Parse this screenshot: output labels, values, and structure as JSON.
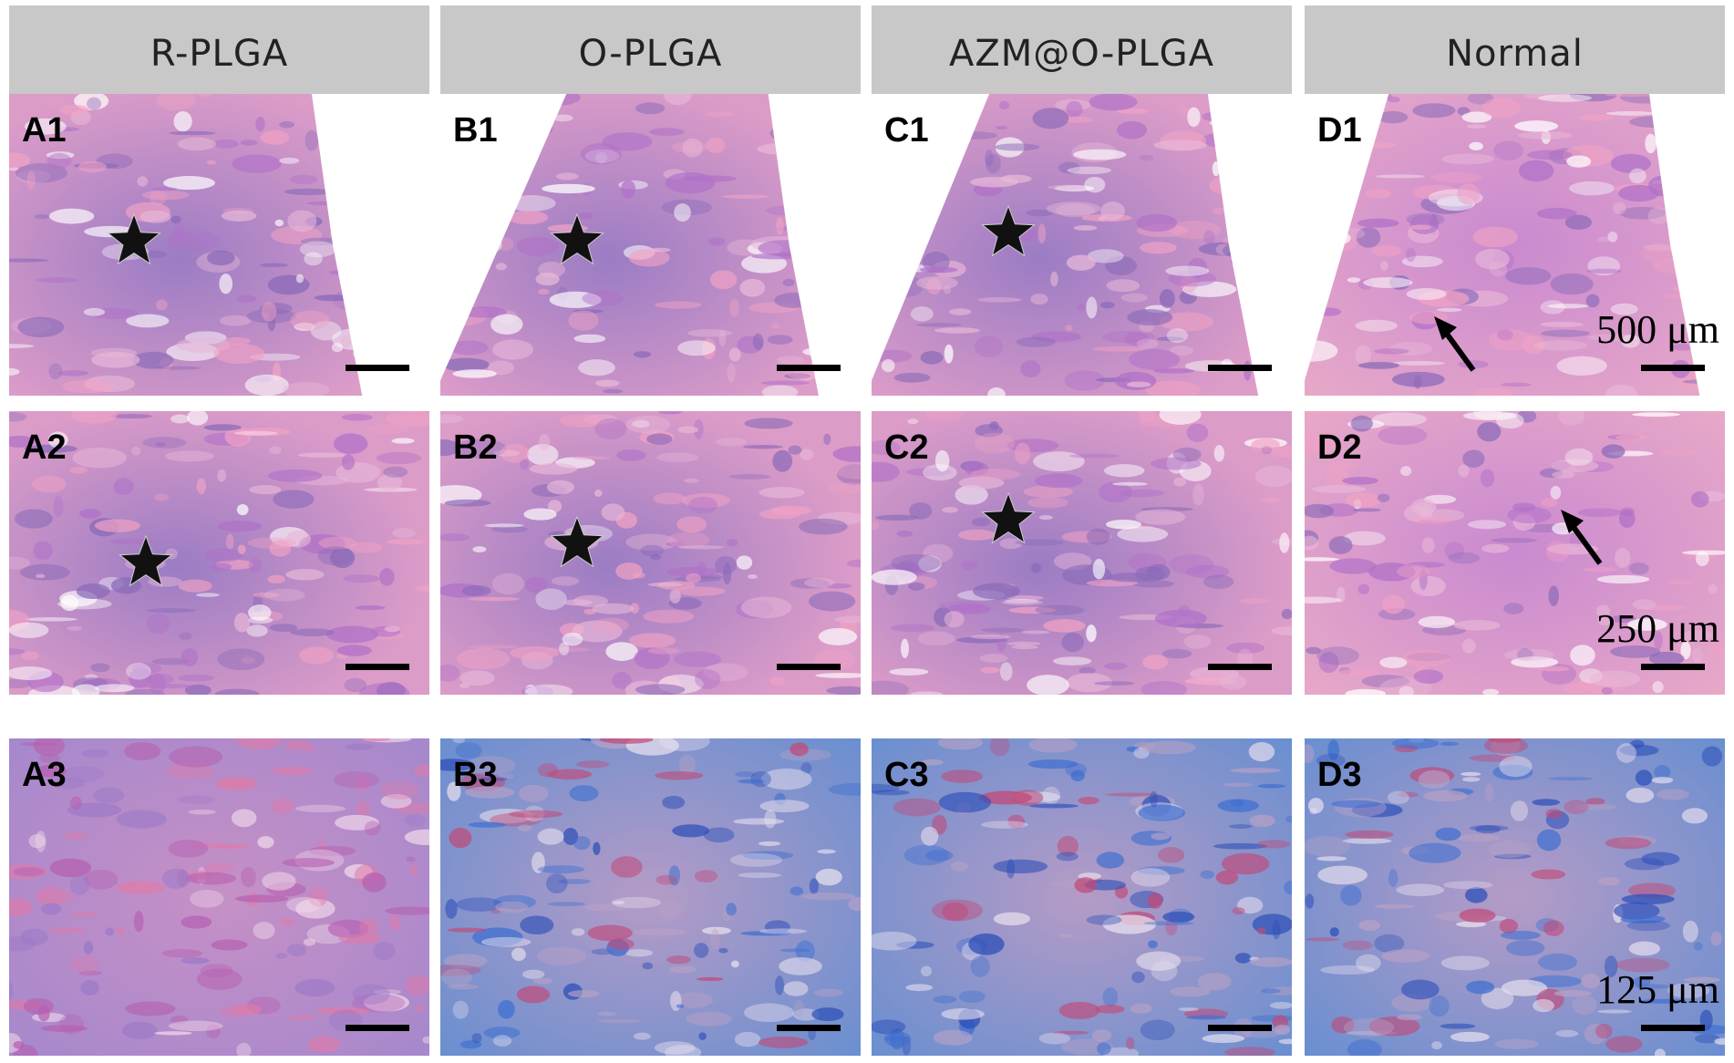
{
  "column_headers": [
    "R-PLGA",
    "O-PLGA",
    "AZM@O-PLGA",
    "Normal"
  ],
  "panels": [
    [
      "A1",
      "B1",
      "C1",
      "D1"
    ],
    [
      "A2",
      "B2",
      "C2",
      "D2"
    ],
    [
      "A3",
      "B3",
      "C3",
      "D3"
    ]
  ],
  "scale_labels": [
    "500 μm",
    "250 μm",
    "125 μm"
  ]
}
